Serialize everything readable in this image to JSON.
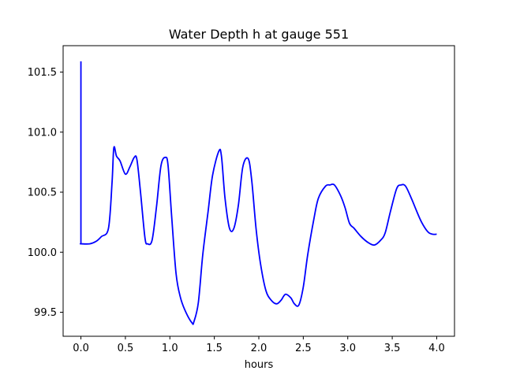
{
  "chart_data": {
    "type": "line",
    "title": "Water Depth h at gauge 551",
    "xlabel": "hours",
    "ylabel": "",
    "xlim": [
      -0.2,
      4.2
    ],
    "ylim": [
      99.3,
      101.72
    ],
    "grid": false,
    "legend": "none",
    "x_ticks": [
      0.0,
      0.5,
      1.0,
      1.5,
      2.0,
      2.5,
      3.0,
      3.5,
      4.0
    ],
    "x_tick_labels": [
      "0.0",
      "0.5",
      "1.0",
      "1.5",
      "2.0",
      "2.5",
      "3.0",
      "3.5",
      "4.0"
    ],
    "y_ticks": [
      99.5,
      100.0,
      100.5,
      101.0,
      101.5
    ],
    "y_tick_labels": [
      "99.5",
      "100.0",
      "100.5",
      "101.0",
      "101.5"
    ],
    "series": [
      {
        "color": "#0000ff",
        "x": [
          0.0,
          0.0,
          0.001,
          0.1,
          0.17,
          0.23,
          0.31,
          0.35,
          0.37,
          0.4,
          0.44,
          0.5,
          0.55,
          0.6,
          0.63,
          0.67,
          0.72,
          0.75,
          0.8,
          0.85,
          0.9,
          0.95,
          0.98,
          1.02,
          1.07,
          1.12,
          1.18,
          1.25,
          1.27,
          1.32,
          1.37,
          1.43,
          1.48,
          1.55,
          1.58,
          1.62,
          1.67,
          1.72,
          1.77,
          1.82,
          1.88,
          1.92,
          1.97,
          2.02,
          2.08,
          2.14,
          2.2,
          2.25,
          2.3,
          2.36,
          2.4,
          2.45,
          2.5,
          2.55,
          2.62,
          2.67,
          2.75,
          2.8,
          2.85,
          2.92,
          2.97,
          3.02,
          3.07,
          3.15,
          3.23,
          3.3,
          3.37,
          3.42,
          3.48,
          3.55,
          3.6,
          3.65,
          3.72,
          3.77,
          3.83,
          3.9,
          3.95,
          4.0
        ],
        "y": [
          101.59,
          100.07,
          100.07,
          100.07,
          100.09,
          100.13,
          100.2,
          100.58,
          100.87,
          100.8,
          100.76,
          100.65,
          100.71,
          100.79,
          100.77,
          100.5,
          100.12,
          100.07,
          100.1,
          100.38,
          100.72,
          100.79,
          100.72,
          100.3,
          99.82,
          99.62,
          99.5,
          99.41,
          99.42,
          99.58,
          99.98,
          100.34,
          100.64,
          100.84,
          100.8,
          100.45,
          100.2,
          100.2,
          100.39,
          100.71,
          100.78,
          100.6,
          100.19,
          99.9,
          99.68,
          99.6,
          99.57,
          99.6,
          99.65,
          99.62,
          99.57,
          99.56,
          99.71,
          99.98,
          100.28,
          100.45,
          100.55,
          100.56,
          100.56,
          100.47,
          100.37,
          100.24,
          100.2,
          100.13,
          100.08,
          100.06,
          100.1,
          100.16,
          100.34,
          100.53,
          100.56,
          100.55,
          100.44,
          100.35,
          100.25,
          100.17,
          100.15,
          100.15
        ]
      }
    ]
  }
}
